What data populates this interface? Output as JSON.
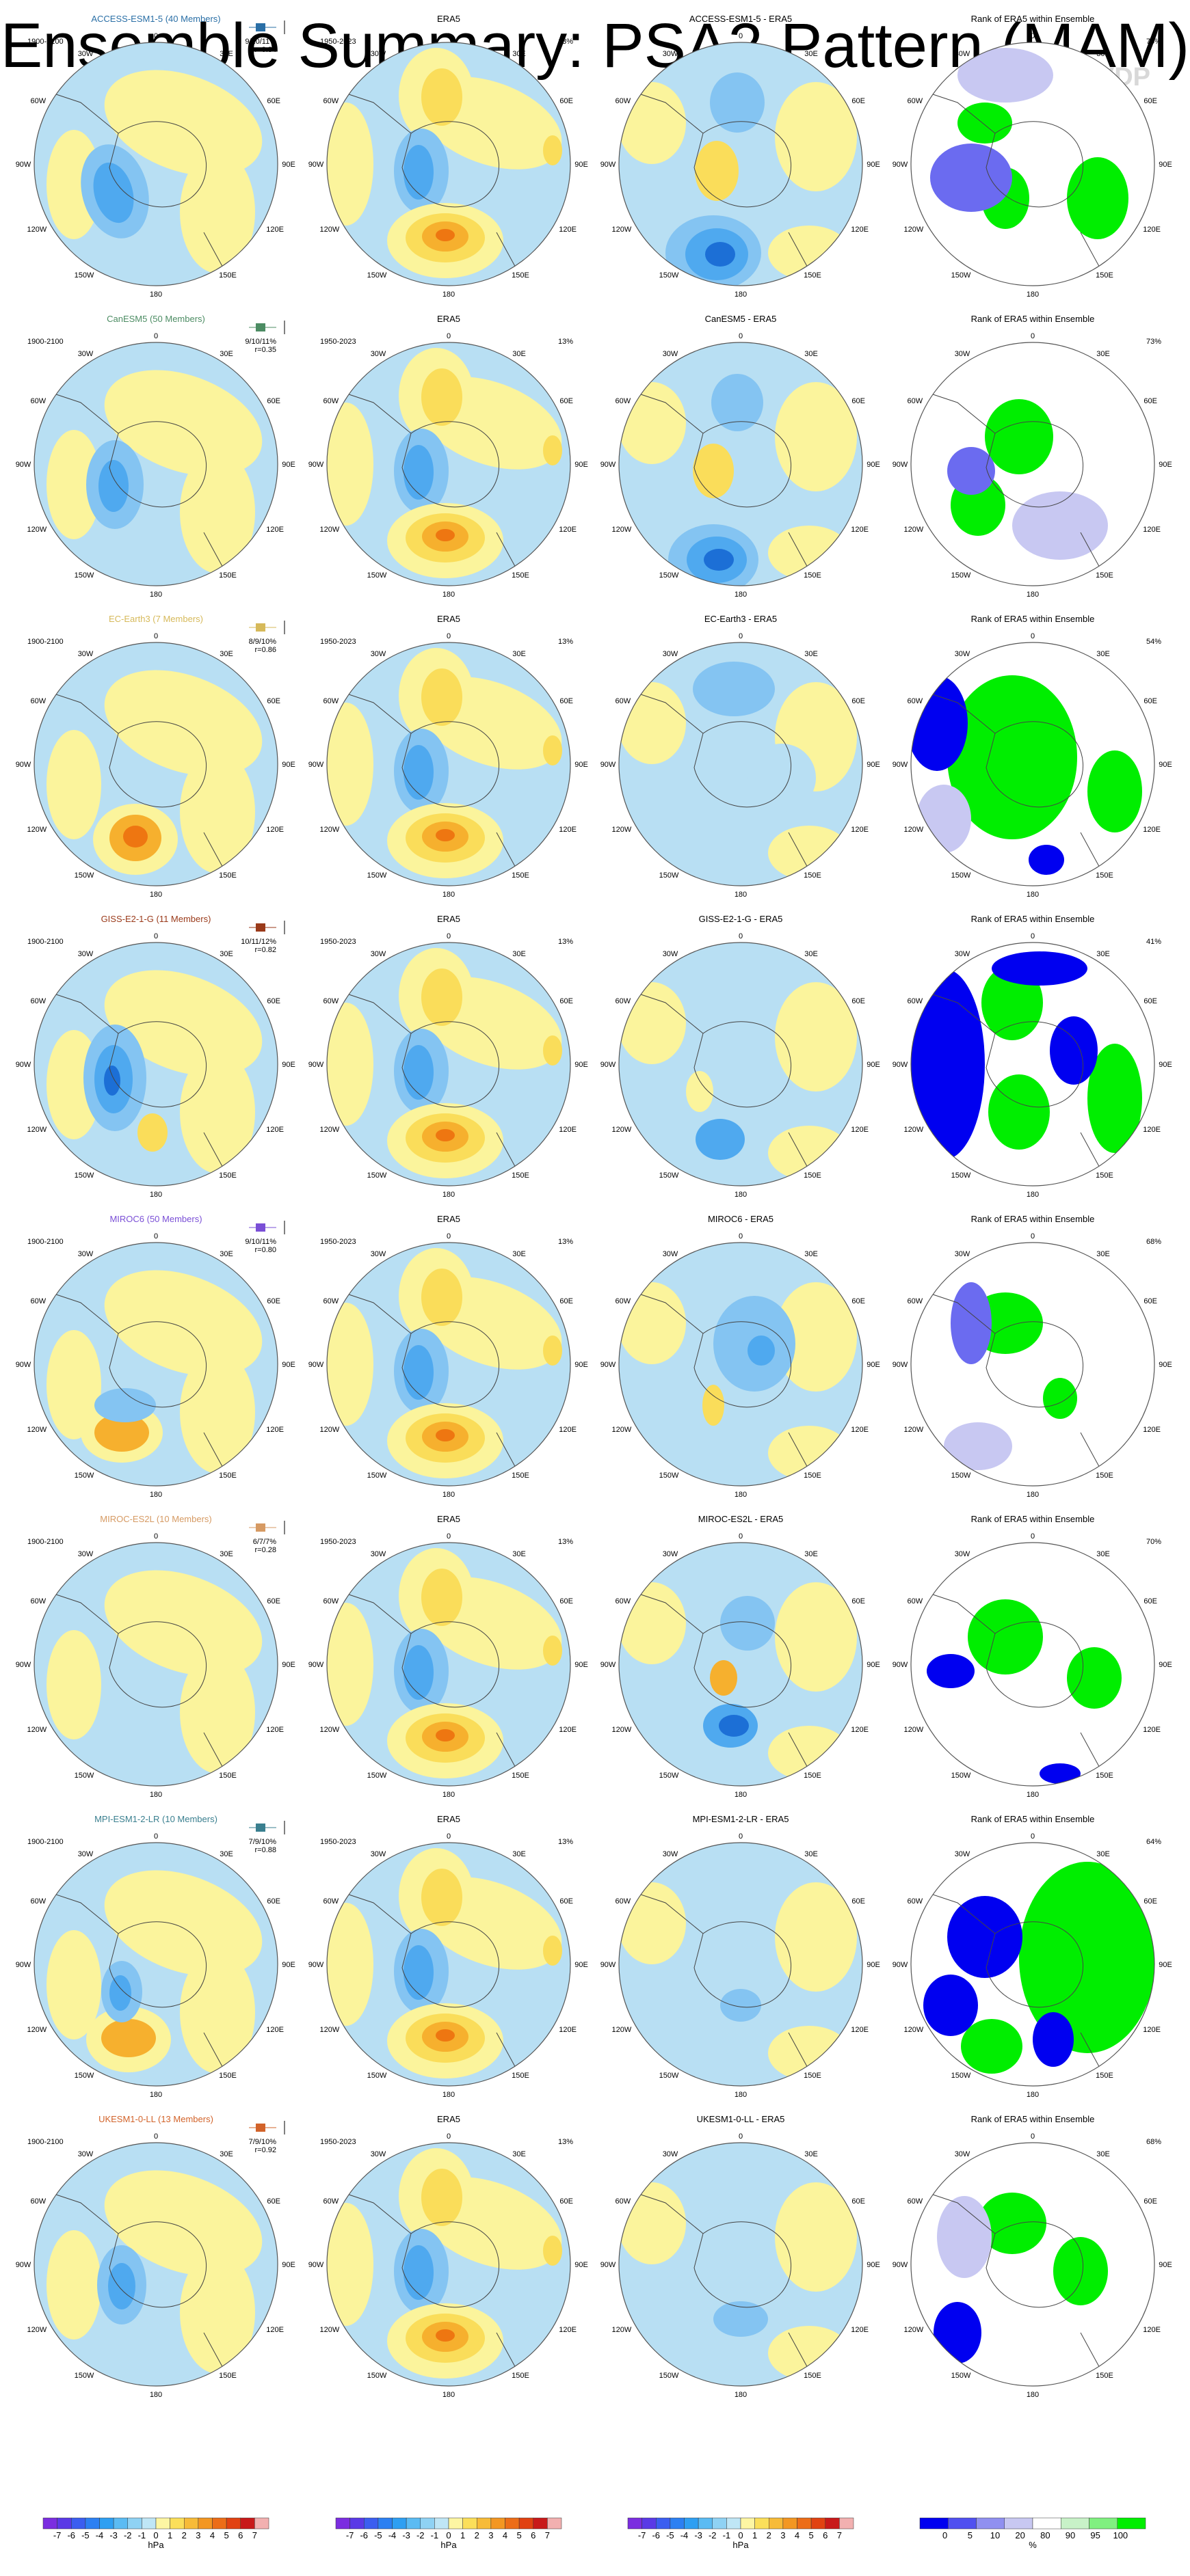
{
  "title": "Ensemble Summary: PSA2 Pattern (MAM)",
  "watermark": "© CVDP",
  "panel_labels": {
    "era5_title": "ERA5",
    "model_period": "1900-2100",
    "era5_period": "1950-2023",
    "rank_title": "Rank of ERA5 within Ensemble",
    "era5_variance": "13%",
    "diff_suffix": " - ERA5"
  },
  "lon_labels": {
    "top": "0",
    "bottom": "180",
    "w30": "30W",
    "e30": "30E",
    "w60": "60W",
    "e60": "60E",
    "w90": "90W",
    "e90": "90E",
    "w120": "120W",
    "e120": "120E",
    "w150": "150W",
    "e150": "150E"
  },
  "colors": {
    "neg3": "#1c6fd6",
    "neg2": "#4fa9ef",
    "neg1": "#84c4f2",
    "neg0": "#b8dff3",
    "pos0": "#fbf49c",
    "pos1": "#fadd5a",
    "pos2": "#f6b02e",
    "pos3": "#ee7611",
    "pos4": "#e0430f",
    "rank_blue": "#0000f0",
    "rank_mid": "#6b6bf0",
    "rank_light": "#c8c8f2",
    "rank_green": "#00ee00",
    "rank_lightgreen": "#b7f0b7"
  },
  "chart_data": {
    "type": "heatmap",
    "models": [
      {
        "name": "ACCESS-ESM1-5 (40 Members)",
        "short": "ACCESS-ESM1-5",
        "color": "#2a6fa6",
        "pct": "9/10/11%",
        "r": "r=0.34",
        "rank_pct": "70%"
      },
      {
        "name": "CanESM5 (50 Members)",
        "short": "CanESM5",
        "color": "#4c8c63",
        "pct": "9/10/11%",
        "r": "r=0.35",
        "rank_pct": "73%"
      },
      {
        "name": "EC-Earth3 (7 Members)",
        "short": "EC-Earth3",
        "color": "#d6b95a",
        "pct": "8/9/10%",
        "r": "r=0.86",
        "rank_pct": "54%"
      },
      {
        "name": "GISS-E2-1-G (11 Members)",
        "short": "GISS-E2-1-G",
        "color": "#9a3a1a",
        "pct": "10/11/12%",
        "r": "r=0.82",
        "rank_pct": "41%"
      },
      {
        "name": "MIROC6 (50 Members)",
        "short": "MIROC6",
        "color": "#7a4fd6",
        "pct": "9/10/11%",
        "r": "r=0.80",
        "rank_pct": "68%"
      },
      {
        "name": "MIROC-ES2L (10 Members)",
        "short": "MIROC-ES2L",
        "color": "#d69a63",
        "pct": "6/7/7%",
        "r": "r=0.28",
        "rank_pct": "70%"
      },
      {
        "name": "MPI-ESM1-2-LR (10 Members)",
        "short": "MPI-ESM1-2-LR",
        "color": "#3a7f8f",
        "pct": "7/9/10%",
        "r": "r=0.88",
        "rank_pct": "64%"
      },
      {
        "name": "UKESM1-0-LL (13 Members)",
        "short": "UKESM1-0-LL",
        "color": "#d2632a",
        "pct": "7/9/10%",
        "r": "r=0.92",
        "rank_pct": "68%"
      }
    ],
    "colorbar_hpa": {
      "ticks": [
        "-7",
        "-6",
        "-5",
        "-4",
        "-3",
        "-2",
        "-1",
        "0",
        "1",
        "2",
        "3",
        "4",
        "5",
        "6",
        "7"
      ],
      "unit": "hPa",
      "colors": [
        "#7b2de0",
        "#5a39e6",
        "#3b5ef0",
        "#2c80f2",
        "#2e9ff2",
        "#5bbbf3",
        "#8fd2f4",
        "#bfe6f6",
        "#fdf6a3",
        "#fbdf5a",
        "#f7bb38",
        "#f39722",
        "#ec6d18",
        "#e14212",
        "#c8191a",
        "#f2b0b0"
      ]
    },
    "colorbar_rank": {
      "ticks": [
        "0",
        "5",
        "10",
        "20",
        "80",
        "90",
        "95",
        "100"
      ],
      "unit": "%",
      "colors": [
        "#0000f0",
        "#5050f0",
        "#9090f0",
        "#c8c8f2",
        "#ffffff",
        "#c8f2c8",
        "#80f080",
        "#00ee00"
      ]
    }
  }
}
